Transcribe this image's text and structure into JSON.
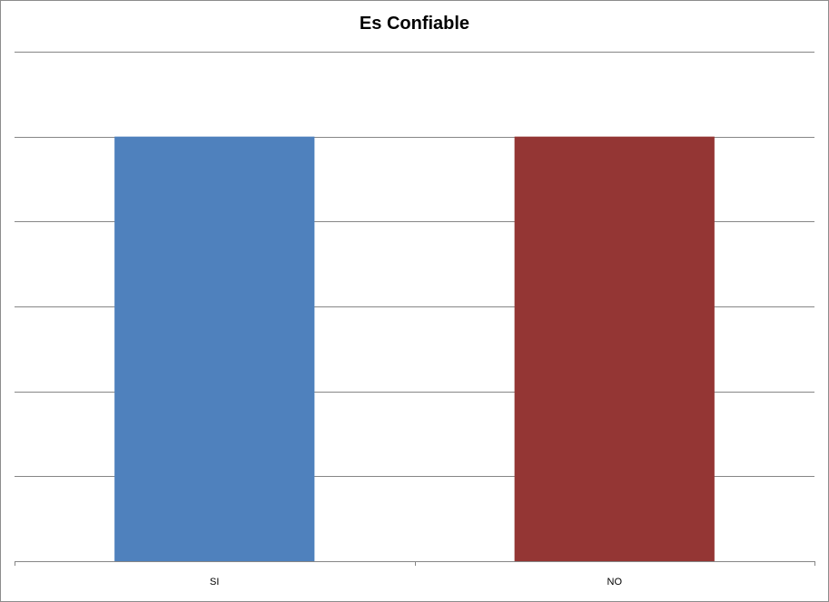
{
  "chart_data": {
    "type": "bar",
    "title": "Es Confiable",
    "xlabel": "",
    "ylabel": "",
    "categories": [
      "SI",
      "NO"
    ],
    "values": [
      1,
      1
    ],
    "ylim": [
      0,
      1.2
    ],
    "y_gridlines": [
      0,
      0.2,
      0.4,
      0.6,
      0.8,
      1.0,
      1.2
    ],
    "grid": true,
    "legend": "none",
    "colors": [
      "#4f81bd",
      "#943634"
    ],
    "gridline_color": "#868686"
  }
}
